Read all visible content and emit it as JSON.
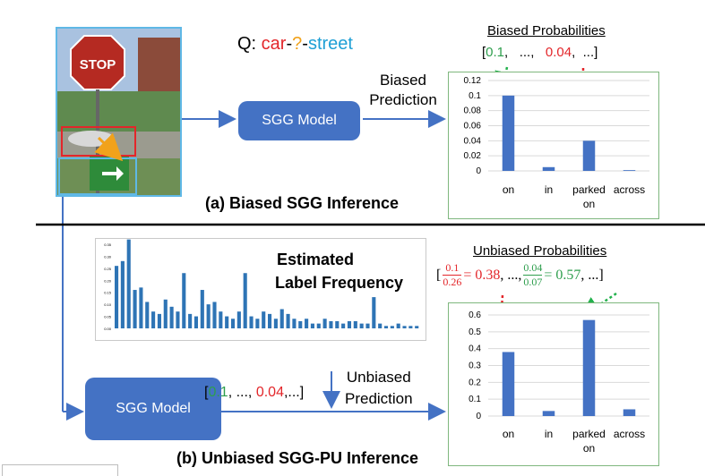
{
  "query": {
    "prefix": "Q: ",
    "subject": "car",
    "sep1": "-",
    "predicate": "?",
    "sep2": "-",
    "object": "street"
  },
  "photo": {
    "sign_text": "STOP"
  },
  "top": {
    "model_label": "SGG Model",
    "prediction_label_line1": "Biased",
    "prediction_label_line2": "Prediction",
    "caption": "(a) Biased SGG Inference",
    "prob_title": "Biased Probabilities",
    "prob_vector": {
      "open": "[",
      "v1": "0.1",
      "c1": ",",
      "dots": "...,",
      "v2": "0.04",
      "c2": ",",
      "tail": "...]"
    }
  },
  "bottom": {
    "model_label": "SGG Model",
    "vector": {
      "open": "[",
      "v1": "0.1",
      "mid": ", ..., ",
      "v2": "0.04",
      "tail": ",...]"
    },
    "prediction_label_line1": "Unbiased",
    "prediction_label_line2": "Prediction",
    "caption": "(b) Unbiased SGG-PU Inference",
    "freq_label_line1": "Estimated",
    "freq_label_line2": "Label Frequency",
    "prob_title": "Unbiased Probabilities",
    "formula": {
      "open": "[",
      "f1_num": "0.1",
      "f1_den": "0.26",
      "r1": "= 0.38",
      "dots": ", ..., ",
      "f2_num": "0.04",
      "f2_den": "0.07",
      "r2": "= 0.57",
      "tail": ", ...]"
    }
  },
  "chart_data": [
    {
      "type": "bar",
      "title": "Biased Probabilities",
      "categories": [
        "on",
        "in",
        "parked on",
        "across"
      ],
      "values": [
        0.1,
        0.005,
        0.04,
        0.001
      ],
      "ylim": [
        0,
        0.12
      ],
      "yticks": [
        "0.12",
        "0.1",
        "0.08",
        "0.06",
        "0.04",
        "0.02",
        "0"
      ],
      "color": "#4472c4"
    },
    {
      "type": "bar",
      "title": "Unbiased Probabilities",
      "categories": [
        "on",
        "in",
        "parked on",
        "across"
      ],
      "values": [
        0.38,
        0.03,
        0.57,
        0.04
      ],
      "ylim": [
        0,
        0.6
      ],
      "yticks": [
        "0.6",
        "0.5",
        "0.4",
        "0.3",
        "0.2",
        "0.1",
        "0"
      ],
      "color": "#4472c4"
    },
    {
      "type": "bar",
      "title": "",
      "values": [
        0.26,
        0.28,
        0.37,
        0.16,
        0.17,
        0.11,
        0.07,
        0.06,
        0.12,
        0.09,
        0.07,
        0.23,
        0.06,
        0.05,
        0.16,
        0.1,
        0.11,
        0.07,
        0.05,
        0.04,
        0.07,
        0.23,
        0.05,
        0.04,
        0.07,
        0.06,
        0.04,
        0.08,
        0.06,
        0.04,
        0.03,
        0.04,
        0.02,
        0.02,
        0.04,
        0.03,
        0.03,
        0.02,
        0.03,
        0.03,
        0.02,
        0.02,
        0.13,
        0.02,
        0.01,
        0.01,
        0.02,
        0.01,
        0.01,
        0.01
      ],
      "ylim": [
        0,
        0.35
      ],
      "yticks": [
        "0.35",
        "0.30",
        "0.25",
        "0.20",
        "0.15",
        "0.10",
        "0.05",
        "0.00"
      ],
      "color": "#2e74b5"
    }
  ]
}
